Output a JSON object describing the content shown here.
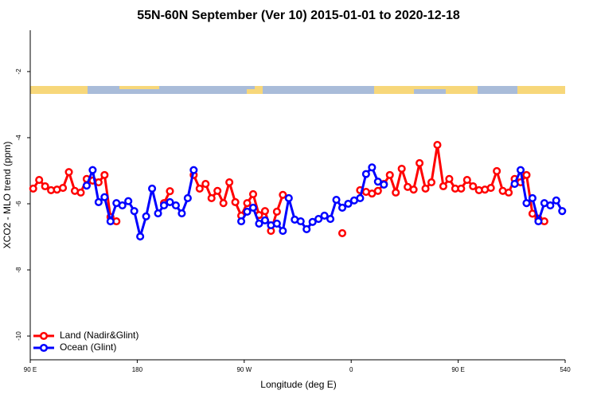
{
  "chart_data": {
    "type": "line",
    "title": "55N-60N September (Ver 10)   2015-01-01 to 2020-12-18",
    "x_label": "Longitude (deg E)",
    "y_label": "XCO2 - MLO trend (ppm)",
    "x": [
      92.5,
      97.5,
      102.5,
      107.5,
      112.5,
      117.5,
      122.5,
      127.5,
      132.5,
      137.5,
      142.5,
      147.5,
      152.5,
      157.5,
      162.5,
      167.5,
      172.5,
      177.5,
      182.5,
      187.5,
      192.5,
      197.5,
      202.5,
      207.5,
      212.5,
      217.5,
      222.5,
      227.5,
      232.5,
      237.5,
      242.5,
      247.5,
      252.5,
      257.5,
      262.5,
      267.5,
      272.5,
      277.5,
      282.5,
      287.5,
      292.5,
      297.5,
      302.5,
      307.5,
      312.5,
      317.5,
      322.5,
      327.5,
      332.5,
      337.5,
      342.5,
      347.5,
      352.5,
      357.5,
      362.5,
      367.5,
      372.5,
      377.5,
      382.5,
      387.5,
      392.5,
      397.5,
      402.5,
      407.5,
      412.5,
      417.5,
      422.5,
      427.5,
      432.5,
      437.5,
      442.5,
      447.5,
      452.5,
      457.5,
      462.5,
      467.5,
      472.5,
      477.5,
      482.5,
      487.5,
      492.5,
      497.5,
      502.5,
      507.5,
      512.5,
      517.5,
      522.5,
      527.5,
      532.5,
      537.5
    ],
    "series": [
      {
        "name": "Land (Nadir&Glint)",
        "color": "#ff0000",
        "values": [
          -5.54,
          -5.28,
          -5.47,
          -5.59,
          -5.57,
          -5.52,
          -5.04,
          -5.61,
          -5.66,
          -5.25,
          -5.3,
          -5.35,
          -5.13,
          -6.4,
          -6.53,
          null,
          null,
          null,
          null,
          null,
          null,
          null,
          -5.98,
          -5.62,
          null,
          null,
          null,
          -5.13,
          -5.54,
          -5.4,
          -5.83,
          -5.61,
          -5.98,
          -5.35,
          -5.95,
          -6.36,
          -5.98,
          -5.71,
          -6.34,
          -6.22,
          -6.82,
          -6.24,
          -5.73,
          null,
          null,
          null,
          null,
          null,
          null,
          null,
          null,
          null,
          -6.89,
          null,
          null,
          -5.59,
          -5.64,
          -5.69,
          -5.61,
          -5.4,
          -5.13,
          -5.66,
          -4.94,
          -5.49,
          -5.57,
          -4.77,
          -5.54,
          -5.35,
          -4.22,
          -5.47,
          -5.25,
          -5.54,
          -5.54,
          -5.28,
          -5.47,
          -5.59,
          -5.57,
          -5.52,
          -5.01,
          -5.61,
          -5.66,
          -5.25,
          -5.35,
          -5.13,
          -6.3,
          -6.45,
          -6.53,
          null,
          null,
          null
        ]
      },
      {
        "name": "Ocean (Glint)",
        "color": "#0000ff",
        "values": [
          null,
          null,
          null,
          null,
          null,
          null,
          null,
          null,
          null,
          -5.45,
          -4.98,
          -5.95,
          -5.8,
          -6.53,
          -5.98,
          -6.05,
          -5.92,
          -6.22,
          -6.99,
          -6.38,
          -5.54,
          -6.29,
          -6.05,
          -5.95,
          -6.05,
          -6.29,
          -5.83,
          -4.98,
          null,
          null,
          null,
          null,
          null,
          null,
          null,
          -6.53,
          -6.24,
          -6.12,
          -6.6,
          -6.5,
          -6.65,
          -6.6,
          -6.82,
          -5.83,
          -6.48,
          -6.53,
          -6.77,
          -6.55,
          -6.46,
          -6.36,
          -6.46,
          -5.88,
          -6.12,
          -6.0,
          -5.9,
          -5.83,
          -5.1,
          -4.9,
          -5.33,
          -5.42,
          null,
          null,
          null,
          null,
          null,
          null,
          null,
          null,
          null,
          null,
          null,
          null,
          null,
          null,
          null,
          null,
          null,
          null,
          null,
          null,
          null,
          -5.4,
          -4.98,
          -5.98,
          -5.83,
          -6.53,
          -5.98,
          -6.05,
          -5.9,
          -6.22
        ]
      }
    ],
    "xlim": [
      90,
      540
    ],
    "xticks": [
      {
        "value": 90,
        "label": "90 E"
      },
      180,
      {
        "value": 270,
        "label": "90 W"
      },
      0,
      {
        "value": 450,
        "label": "90 E"
      },
      540
    ],
    "ylim": [
      -10.72,
      -0.75
    ],
    "yticks": [
      -10,
      -8,
      -6,
      -4,
      -2
    ],
    "legend": "bottom-left"
  }
}
